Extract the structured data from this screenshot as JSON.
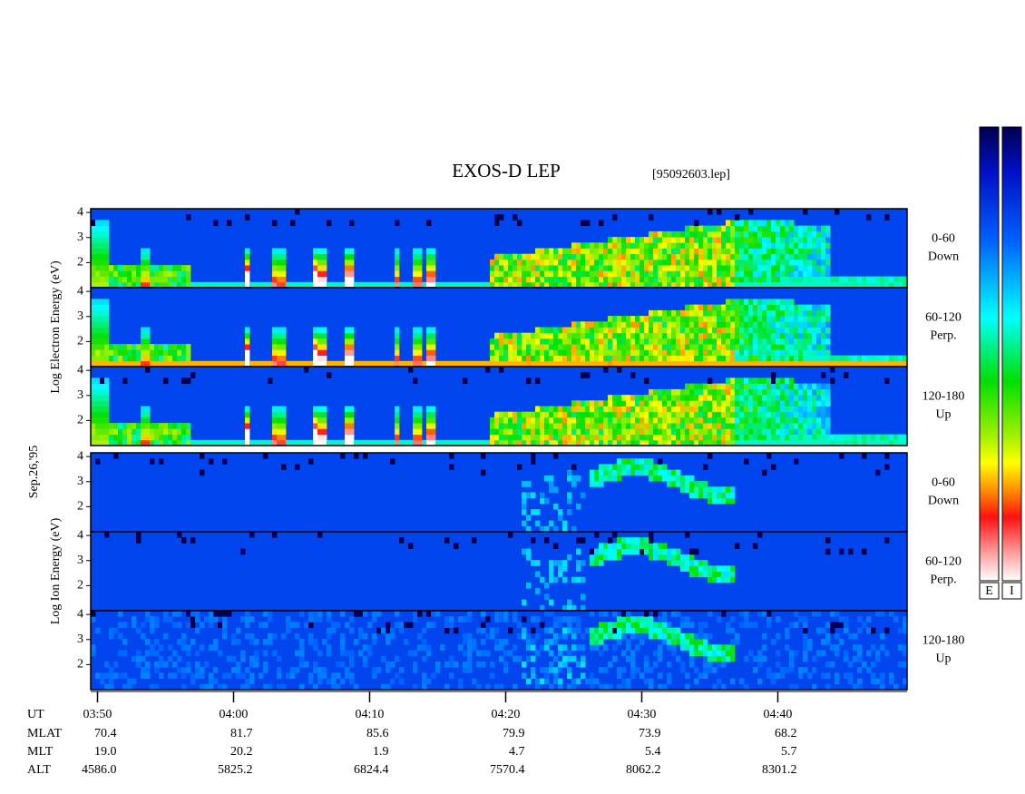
{
  "chart_data": {
    "type": "spectrogram",
    "title": "EXOS-D LEP",
    "subtitle": "[95092603.lep]",
    "date": "Sep.26,'95",
    "xlim": [
      229.5,
      289.5
    ],
    "xticks": [
      {
        "value": 230,
        "label": "03:50"
      },
      {
        "value": 240,
        "label": "04:00"
      },
      {
        "value": 250,
        "label": "04:10"
      },
      {
        "value": 260,
        "label": "04:20"
      },
      {
        "value": 270,
        "label": "04:30"
      },
      {
        "value": 280,
        "label": "04:40"
      }
    ],
    "x_label": "UT",
    "ephemeris": [
      {
        "name": "MLAT",
        "values": [
          "70.4",
          "81.7",
          "85.6",
          "79.9",
          "73.9",
          "68.2"
        ]
      },
      {
        "name": "MLT",
        "values": [
          "19.0",
          "20.2",
          "1.9",
          "4.7",
          "5.4",
          "5.7"
        ]
      },
      {
        "name": "ALT",
        "values": [
          "4586.0",
          "5825.2",
          "6824.4",
          "7570.4",
          "8062.2",
          "8301.2"
        ]
      }
    ],
    "ylim": [
      1,
      4.15
    ],
    "yticks": [
      2,
      3,
      4
    ],
    "groups": [
      {
        "species": "electron",
        "ylabel": "Log   Electron   Energy (eV)",
        "panels": [
          {
            "label": [
              "0-60",
              "Down"
            ]
          },
          {
            "label": [
              "60-120",
              "Perp."
            ]
          },
          {
            "label": [
              "120-180",
              "Up"
            ]
          }
        ]
      },
      {
        "species": "ion",
        "ylabel": "Log   Ion   Energy (eV)",
        "panels": [
          {
            "label": [
              "0-60",
              "Down"
            ]
          },
          {
            "label": [
              "60-120",
              "Perp."
            ]
          },
          {
            "label": [
              "120-180",
              "Up"
            ]
          }
        ]
      }
    ],
    "colorbars": [
      "E",
      "I"
    ]
  }
}
